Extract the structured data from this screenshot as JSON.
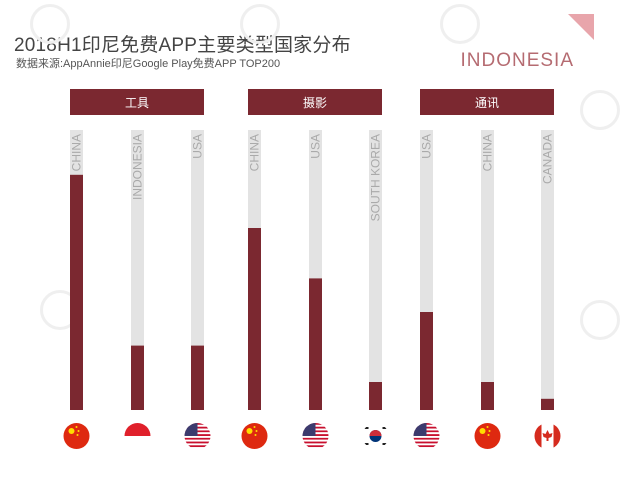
{
  "title": "2018H1印尼免费APP主要类型国家分布",
  "subtitle": "数据来源:AppAnnie印尼Google Play免费APP TOP200",
  "brand": "INDONESIA",
  "colors": {
    "bar": "#7b2830",
    "track": "#e3e3e3",
    "label": "#aaaaaa",
    "accent": "#e8a5ab"
  },
  "chart_data": {
    "type": "bar",
    "title": "2018H1印尼免费APP主要类型国家分布",
    "ylim": [
      0,
      100
    ],
    "groups": [
      {
        "name": "工具",
        "bars": [
          {
            "country": "CHINA",
            "flag": "china-flag",
            "value": 84
          },
          {
            "country": "INDONESIA",
            "flag": "indonesia-flag",
            "value": 23
          },
          {
            "country": "USA",
            "flag": "usa-flag",
            "value": 23
          }
        ]
      },
      {
        "name": "摄影",
        "bars": [
          {
            "country": "CHINA",
            "flag": "china-flag",
            "value": 65
          },
          {
            "country": "USA",
            "flag": "usa-flag",
            "value": 47
          },
          {
            "country": "SOUTH KOREA",
            "flag": "south-korea-flag",
            "value": 10
          }
        ]
      },
      {
        "name": "通讯",
        "bars": [
          {
            "country": "USA",
            "flag": "usa-flag",
            "value": 35
          },
          {
            "country": "CHINA",
            "flag": "china-flag",
            "value": 10
          },
          {
            "country": "CANADA",
            "flag": "canada-flag",
            "value": 4
          }
        ]
      }
    ]
  }
}
